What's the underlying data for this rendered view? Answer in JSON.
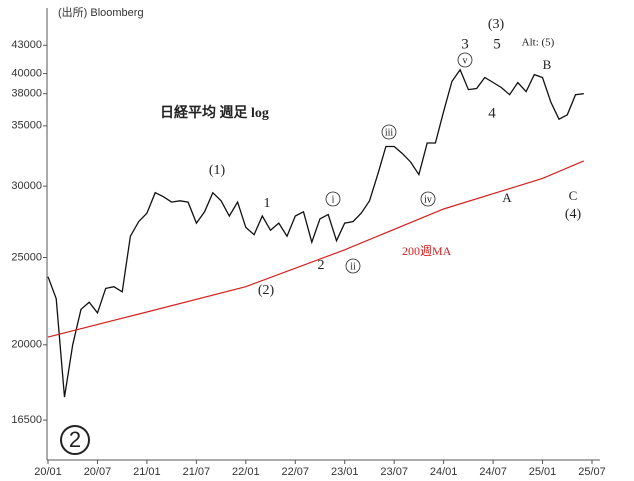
{
  "chart_data": {
    "type": "line",
    "source": "(出所) Bloomberg",
    "title": "日経平均 週足 log",
    "log_scale": true,
    "grid": false,
    "xlim": [
      "20/01",
      "25/07"
    ],
    "xticks": [
      "20/01",
      "20/07",
      "21/01",
      "21/07",
      "22/01",
      "22/07",
      "23/01",
      "23/07",
      "24/01",
      "24/07",
      "25/01",
      "25/07"
    ],
    "ylim": [
      14900,
      47300
    ],
    "yticks": [
      16500,
      20000,
      25000,
      30000,
      35000,
      38000,
      40000,
      43000
    ],
    "x": [
      "20/01",
      "20/02",
      "20/03",
      "20/04",
      "20/05",
      "20/06",
      "20/07",
      "20/08",
      "20/09",
      "20/10",
      "20/11",
      "20/12",
      "21/01",
      "21/02",
      "21/03",
      "21/04",
      "21/05",
      "21/06",
      "21/07",
      "21/08",
      "21/09",
      "21/10",
      "21/11",
      "21/12",
      "22/01",
      "22/02",
      "22/03",
      "22/04",
      "22/05",
      "22/06",
      "22/07",
      "22/08",
      "22/09",
      "22/10",
      "22/11",
      "22/12",
      "23/01",
      "23/02",
      "23/03",
      "23/04",
      "23/05",
      "23/06",
      "23/07",
      "23/08",
      "23/09",
      "23/10",
      "23/11",
      "23/12",
      "24/01",
      "24/02",
      "24/03",
      "24/04",
      "24/05",
      "24/06",
      "24/07",
      "24/08",
      "24/09",
      "24/10",
      "24/11",
      "24/12",
      "25/01",
      "25/02",
      "25/03",
      "25/04",
      "25/05",
      "25/06"
    ],
    "series": [
      {
        "name": "日経平均",
        "color": "#111111",
        "values": [
          23800,
          22500,
          17500,
          20000,
          21900,
          22300,
          21700,
          23100,
          23200,
          22900,
          26400,
          27400,
          28000,
          29500,
          29200,
          28800,
          28900,
          28800,
          27300,
          28100,
          29500,
          28900,
          27800,
          28800,
          27000,
          26500,
          27800,
          26800,
          27300,
          26400,
          27800,
          28100,
          26000,
          27600,
          27900,
          26100,
          27300,
          27400,
          28000,
          28900,
          30900,
          33200,
          33200,
          32600,
          31900,
          30900,
          33500,
          33500,
          36300,
          39200,
          40400,
          38400,
          38500,
          39600,
          39100,
          38600,
          37900,
          39100,
          38200,
          39900,
          39600,
          37200,
          35600,
          36000,
          37900,
          38000
        ]
      },
      {
        "name": "200週MA",
        "color": "#d42020",
        "x": [
          "20/01",
          "21/01",
          "22/01",
          "23/01",
          "24/01",
          "25/01",
          "25/06"
        ],
        "values": [
          20400,
          21750,
          23200,
          25500,
          28300,
          30600,
          32000
        ]
      }
    ],
    "annotations": [
      "(1)",
      "1",
      "(2)",
      "2",
      "i",
      "ii",
      "iii",
      "iv",
      "v",
      "3",
      "5",
      "(3)",
      "4",
      "Alt: (5)",
      "B",
      "A",
      "C",
      "(4)",
      "2"
    ]
  }
}
